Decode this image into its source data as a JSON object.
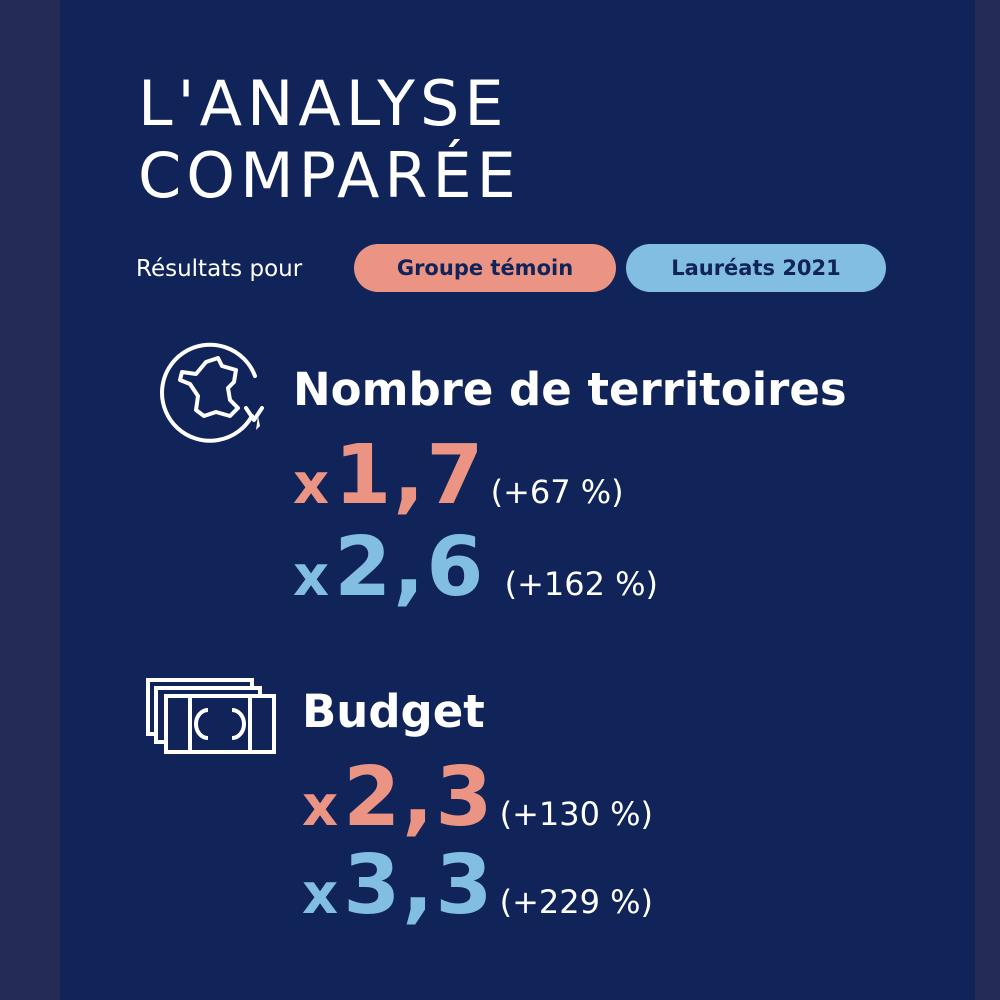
{
  "title": {
    "line1": "L'ANALYSE",
    "line2": "COMPARÉE"
  },
  "legend": {
    "intro": "Résultats pour",
    "items": [
      {
        "label": "Groupe témoin",
        "color": "#ec9483"
      },
      {
        "label": "Lauréats 2021",
        "color": "#82bde2"
      }
    ]
  },
  "sections": [
    {
      "icon": "france-map-circle-icon",
      "heading": "Nombre de territoires",
      "stats": [
        {
          "prefix": "x",
          "value": "1,7",
          "percent": "(+67 %)"
        },
        {
          "prefix": "x",
          "value": "2,6",
          "percent": "(+162 %)"
        }
      ]
    },
    {
      "icon": "banknotes-icon",
      "heading": "Budget",
      "stats": [
        {
          "prefix": "x",
          "value": "2,3",
          "percent": "(+130 %)"
        },
        {
          "prefix": "x",
          "value": "3,3",
          "percent": "(+229 %)"
        }
      ]
    }
  ],
  "colors": {
    "background": "#10245a",
    "salmon": "#ec9483",
    "blue": "#82bde2",
    "text": "#ffffff"
  }
}
